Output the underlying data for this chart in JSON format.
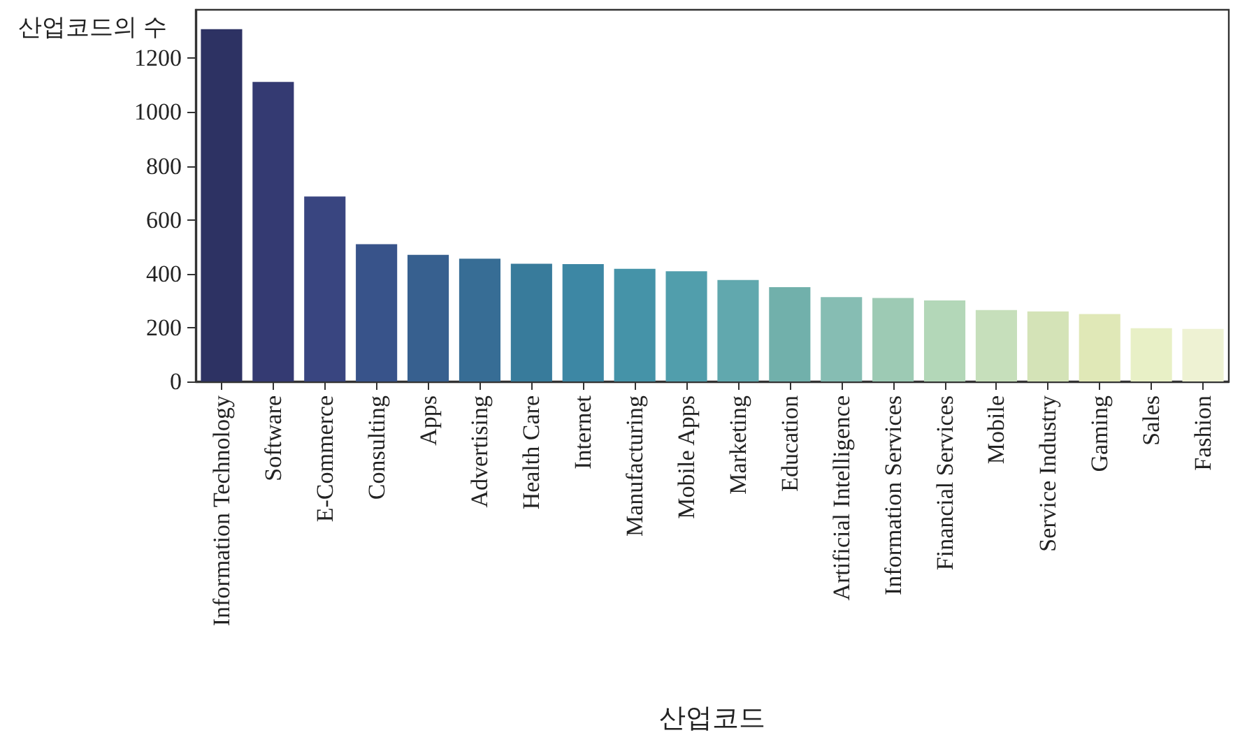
{
  "chart_data": {
    "type": "bar",
    "xlabel": "산업코드",
    "ylabel": "산업코드의 수",
    "categories": [
      "Information Technology",
      "Software",
      "E-Commerce",
      "Consulting",
      "Apps",
      "Advertising",
      "Health Care",
      "Internet",
      "Manufacturing",
      "Mobile Apps",
      "Marketing",
      "Education",
      "Artificial Intelligence",
      "Information Services",
      "Financial Services",
      "Mobile",
      "Service Industry",
      "Gaming",
      "Sales",
      "Fashion"
    ],
    "values": [
      1308,
      1112,
      687,
      510,
      470,
      456,
      437,
      436,
      418,
      409,
      377,
      350,
      313,
      310,
      301,
      265,
      260,
      250,
      198,
      195
    ],
    "colors": [
      "#2d3263",
      "#343a72",
      "#394580",
      "#38538a",
      "#37608f",
      "#376d95",
      "#387b9b",
      "#3d87a4",
      "#4593a8",
      "#519eac",
      "#61a8ae",
      "#71b0ab",
      "#86bdb3",
      "#9dcab4",
      "#b3d7b8",
      "#c6dfbb",
      "#d4e3b7",
      "#e0e8b7",
      "#e8f0c6",
      "#eef2d3"
    ],
    "ylim": [
      0,
      1380
    ],
    "yticks": [
      0,
      200,
      400,
      600,
      800,
      1000,
      1200
    ],
    "grid": false
  }
}
